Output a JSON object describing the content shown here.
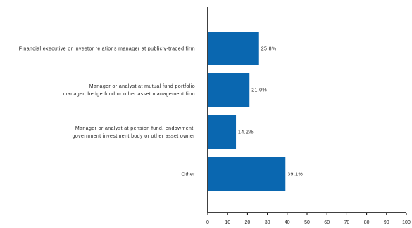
{
  "chart_data": {
    "type": "bar",
    "orientation": "horizontal",
    "categories": [
      [
        "Financial executive or investor relations manager at publicly-traded firm"
      ],
      [
        "Manager or analyst at mutual fund portfolio",
        "manager, hedge fund or other asset management firm"
      ],
      [
        "Manager or analyst at pension fund, endowment,",
        "government investment body or other asset owner"
      ],
      [
        "Other"
      ]
    ],
    "values": [
      25.8,
      21.0,
      14.2,
      39.1
    ],
    "data_labels": [
      "25.8%",
      "21.0%",
      "14.2%",
      "39.1%"
    ],
    "xlim": [
      0,
      100
    ],
    "xticks": [
      0,
      10,
      20,
      30,
      40,
      50,
      60,
      70,
      80,
      90,
      100
    ],
    "grid": false,
    "colors": {
      "bar": "#0a67b0",
      "axis": "#000000"
    }
  }
}
